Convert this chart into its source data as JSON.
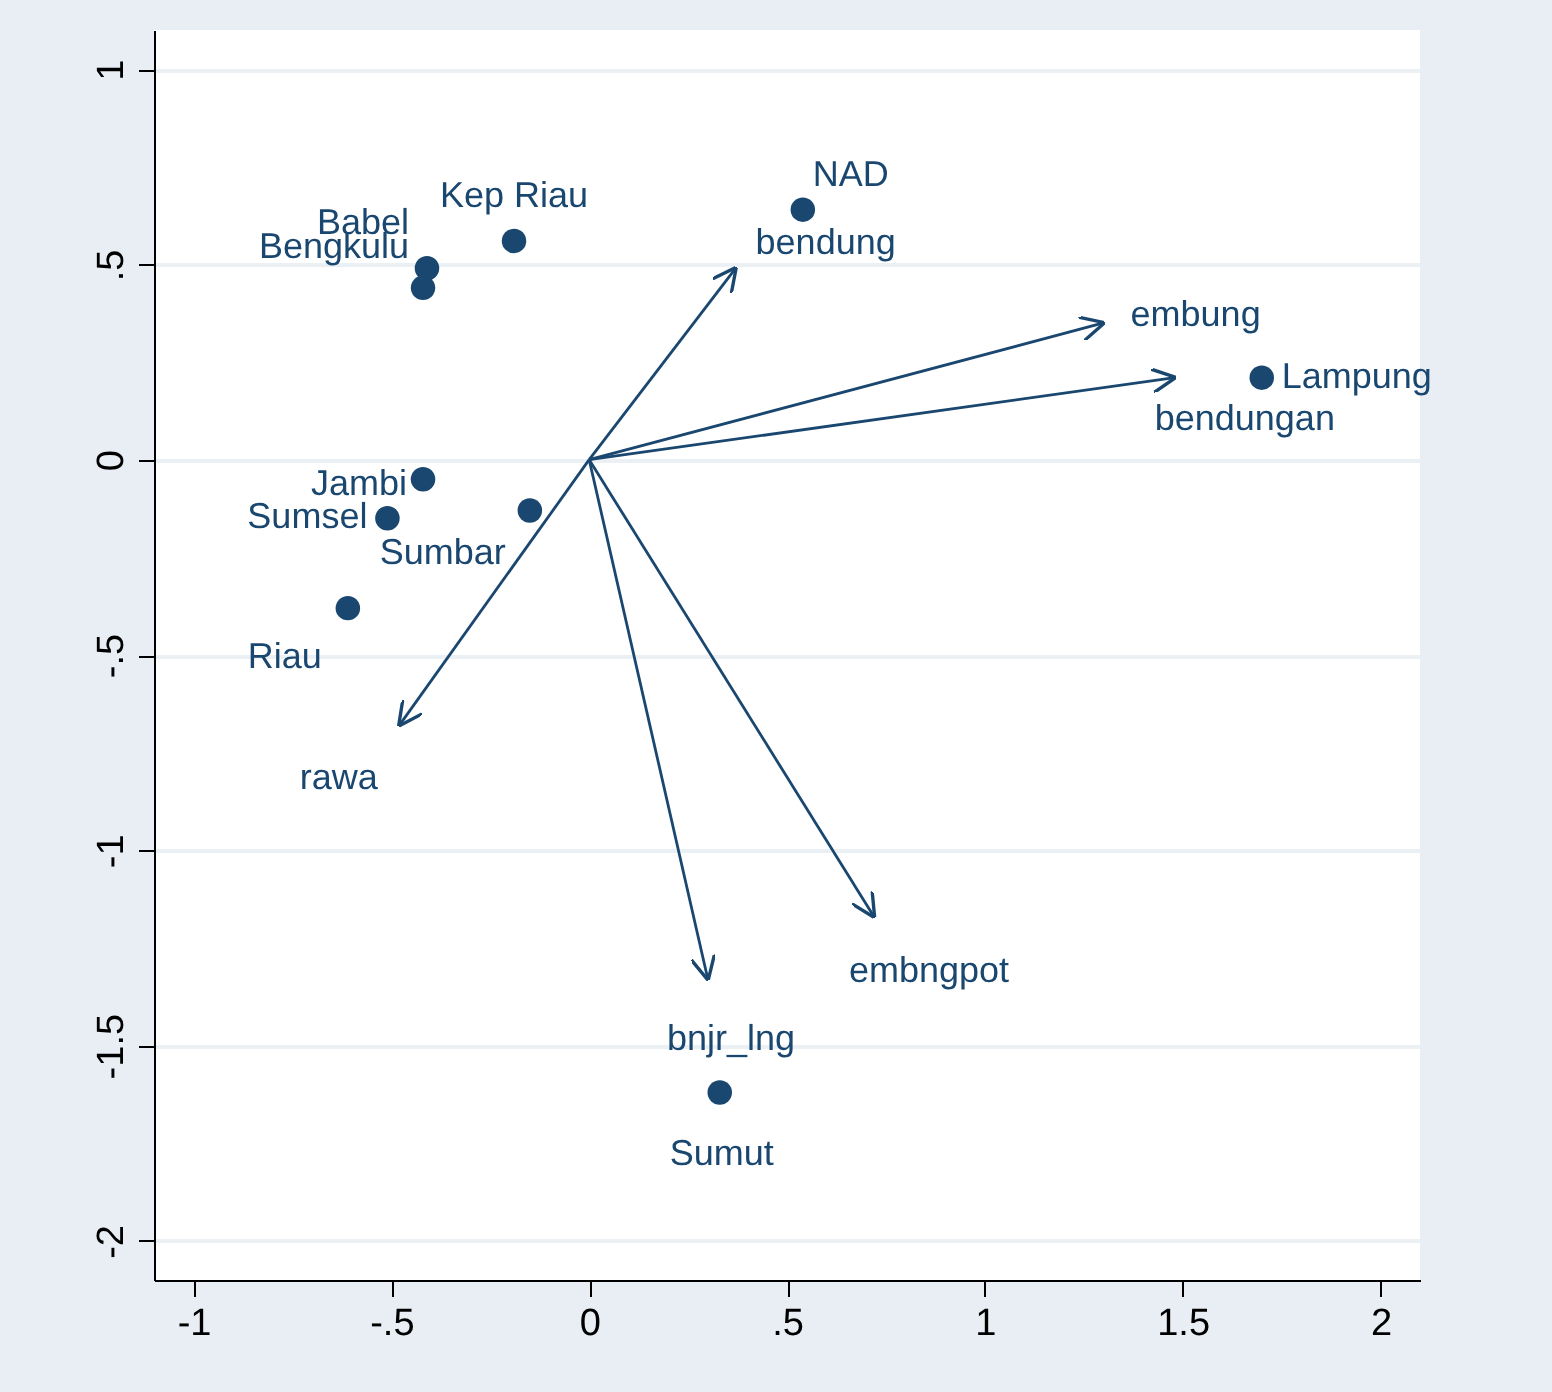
{
  "chart_data": {
    "type": "scatter",
    "marker": "circle",
    "grid": "y",
    "xlim": [
      -1.1,
      2.1
    ],
    "ylim": [
      -2.1,
      1.1
    ],
    "xticks": [
      -1,
      {
        "value": -0.5,
        "label": "-.5"
      },
      0,
      {
        "value": 0.5,
        "label": ".5"
      },
      1,
      1.5,
      2
    ],
    "yticks": [
      -2,
      -1.5,
      -1,
      {
        "value": -0.5,
        "label": "-.5"
      },
      0,
      {
        "value": 0.5,
        "label": ".5"
      },
      1
    ],
    "series": [
      {
        "color": "#1a476f",
        "x": [
          0.54,
          -0.19,
          -0.41,
          -0.42,
          -0.42,
          -0.51,
          -0.15,
          -0.61,
          1.7,
          0.33
        ],
        "values": [
          0.64,
          0.56,
          0.49,
          0.44,
          -0.05,
          -0.15,
          -0.13,
          -0.38,
          0.21,
          -1.62
        ]
      },
      {
        "type": "line",
        "marker": "none",
        "name": "bendung",
        "color": "#1a476f",
        "x": [
          0,
          0.37
        ],
        "values": [
          0,
          0.49
        ]
      },
      {
        "type": "line",
        "marker": "none",
        "name": "embung",
        "color": "#1a476f",
        "x": [
          0,
          1.3
        ],
        "values": [
          0,
          0.35
        ]
      },
      {
        "type": "line",
        "marker": "none",
        "name": "bendungan",
        "color": "#1a476f",
        "x": [
          0,
          1.48
        ],
        "values": [
          0,
          0.21
        ]
      },
      {
        "type": "line",
        "marker": "none",
        "name": "rawa",
        "color": "#1a476f",
        "x": [
          0,
          -0.48
        ],
        "values": [
          0,
          -0.68
        ]
      },
      {
        "type": "line",
        "marker": "none",
        "name": "bnjr_lng",
        "color": "#1a476f",
        "x": [
          0,
          0.3
        ],
        "values": [
          0,
          -1.33
        ]
      },
      {
        "type": "line",
        "marker": "none",
        "name": "embngpot",
        "color": "#1a476f",
        "x": [
          0,
          0.72
        ],
        "values": [
          0,
          -1.17
        ]
      }
    ],
    "annotations": [
      {
        "text": "NAD",
        "x": 0.54,
        "y": 0.64
      },
      {
        "text": "Kep Riau",
        "x": -0.19,
        "y": 0.56
      },
      {
        "text": "Babel",
        "x": -0.41,
        "y": 0.49
      },
      {
        "text": "Bengkulu",
        "x": -0.42,
        "y": 0.44
      },
      {
        "text": "Jambi",
        "x": -0.42,
        "y": -0.05
      },
      {
        "text": "Sumsel",
        "x": -0.51,
        "y": -0.15
      },
      {
        "text": "Sumbar",
        "x": -0.15,
        "y": -0.13
      },
      {
        "text": "Riau",
        "x": -0.61,
        "y": -0.38
      },
      {
        "text": "Lampung",
        "x": 1.7,
        "y": 0.21
      },
      {
        "text": "Sumut",
        "x": 0.33,
        "y": -1.62
      }
    ]
  }
}
